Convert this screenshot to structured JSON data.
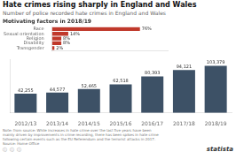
{
  "chart_data": [
    {
      "type": "bar",
      "title": "Hate crimes rising sharply in England and Wales",
      "subtitle": "Number of police recorded hate crimes in England and Wales",
      "categories": [
        "2012/13",
        "2013/14",
        "2014/15",
        "2015/16",
        "2016/17",
        "2017/18",
        "2018/19"
      ],
      "values": [
        42255,
        44577,
        52465,
        62518,
        80393,
        94121,
        103379
      ],
      "value_labels": [
        "42,255",
        "44,577",
        "52,465",
        "62,518",
        "80,393",
        "94,121",
        "103,379"
      ],
      "data_labels": true,
      "color": "#3d5166",
      "ylim": [
        0,
        118000
      ],
      "yticks": [],
      "grid": false,
      "tick_labels": "x",
      "annotations": [
        "Note: from source: While increases in hate crime over the last five years have been\nmainly driven by improvements in crime recording, there has been spikes in hate crime\nfollowing certain events such as the EU Referendum and the terrorist attacks in 2017.",
        "Source: Home Office",
        "ⓘ  ⓘ  ⓘ",
        "statista"
      ]
    },
    {
      "type": "bar",
      "orientation": "horizontal",
      "title": "Motivating factors in 2018/19",
      "categories": [
        "Race",
        "Sexual orientation",
        "Religion",
        "Disability",
        "Transgender"
      ],
      "values": [
        76,
        14,
        8,
        8,
        2
      ],
      "value_labels": [
        "76%",
        "14%",
        "8%",
        "8%",
        "2%"
      ],
      "data_labels": true,
      "color": "#c0392b",
      "xlim": [
        0,
        100
      ],
      "xticks": [],
      "grid": false,
      "tick_labels": "y"
    }
  ]
}
